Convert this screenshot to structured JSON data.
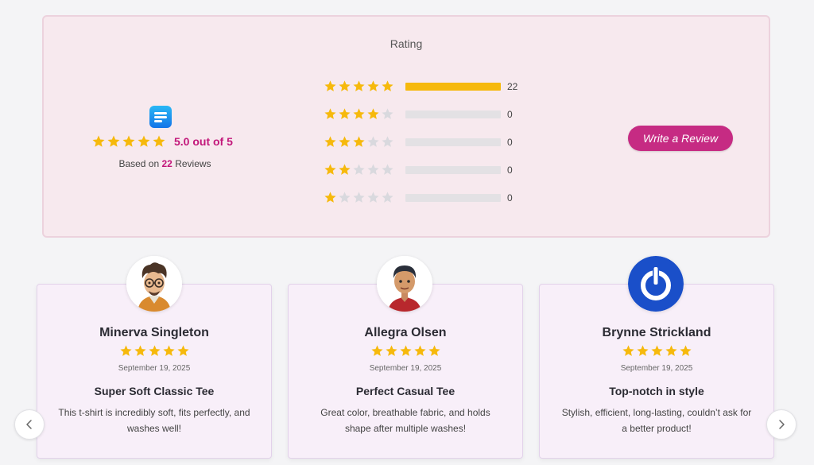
{
  "summary": {
    "title": "Rating",
    "overall_score": "5.0 out of 5",
    "overall_rating": 5,
    "based_prefix": "Based on",
    "review_count": "22",
    "based_suffix": "Reviews",
    "write_review_label": "Write a Review",
    "breakdown": [
      {
        "stars": 5,
        "count": "22",
        "fraction": 1.0
      },
      {
        "stars": 4,
        "count": "0",
        "fraction": 0
      },
      {
        "stars": 3,
        "count": "0",
        "fraction": 0
      },
      {
        "stars": 2,
        "count": "0",
        "fraction": 0
      },
      {
        "stars": 1,
        "count": "0",
        "fraction": 0
      }
    ]
  },
  "reviews": [
    {
      "name": "Minerva Singleton",
      "rating": 5,
      "date": "September 19, 2025",
      "title": "Super Soft Classic Tee",
      "text": "This t-shirt is incredibly soft, fits perfectly, and washes well!",
      "avatar": "cartoon-man-glasses"
    },
    {
      "name": "Allegra Olsen",
      "rating": 5,
      "date": "September 19, 2025",
      "title": "Perfect Casual Tee",
      "text": "Great color, breathable fabric, and holds shape after multiple washes!",
      "avatar": "cartoon-boy"
    },
    {
      "name": "Brynne Strickland",
      "rating": 5,
      "date": "September 19, 2025",
      "title": "Top-notch in style",
      "text": "Stylish, efficient, long-lasting, couldn’t ask for a better product!",
      "avatar": "power-logo"
    }
  ],
  "colors": {
    "star_filled": "#f6b90c",
    "star_empty": "#d9d9de",
    "accent": "#c2177a",
    "button": "#c62b83"
  },
  "icons": {
    "prev": "chevron-left-icon",
    "next": "chevron-right-icon",
    "brand": "brand-logo-icon"
  }
}
